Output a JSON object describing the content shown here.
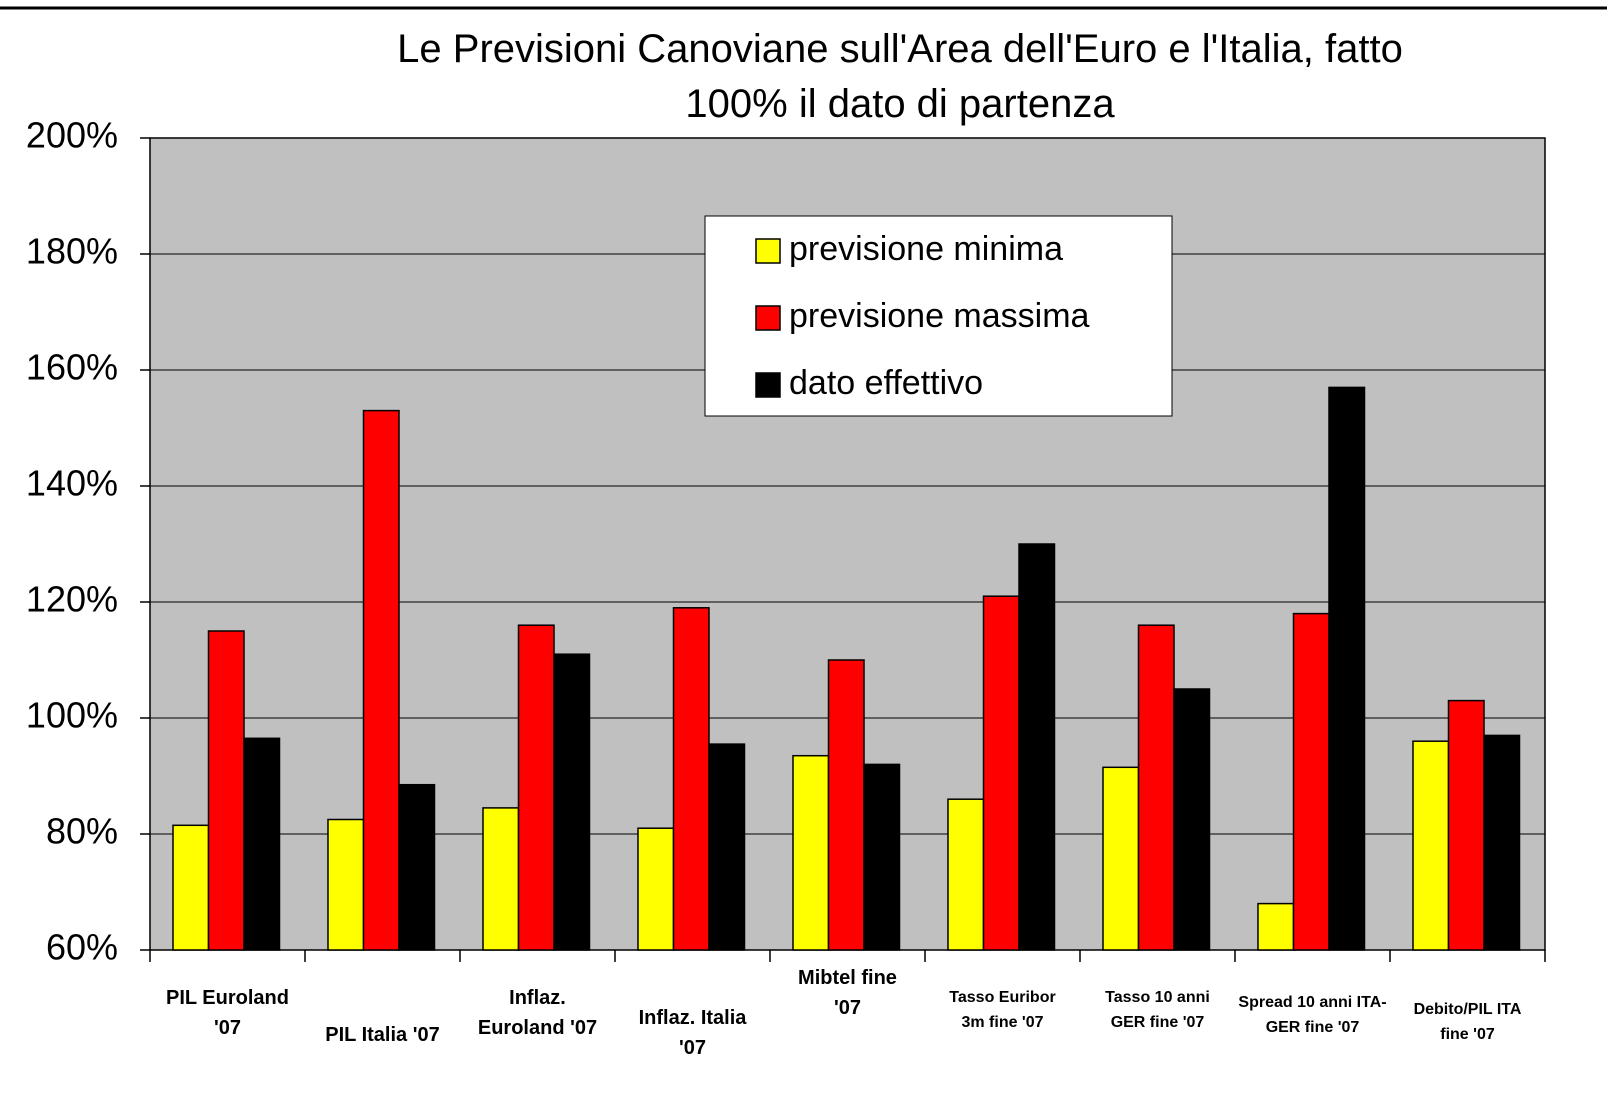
{
  "chart_data": {
    "type": "bar",
    "title": "Le Previsioni Canoviane sull'Area dell'Euro e l'Italia, fatto\n100% il dato di partenza",
    "categories": [
      "PIL Euroland\n'07",
      "PIL Italia '07",
      "Inflaz.\nEuroland '07",
      "Inflaz. Italia\n'07",
      "Mibtel fine\n'07",
      "Tasso Euribor\n3m fine '07",
      "Tasso 10 anni\nGER fine '07",
      "Spread 10 anni ITA-\nGER fine '07",
      "Debito/PIL ITA\nfine '07"
    ],
    "series": [
      {
        "name": "previsione minima",
        "color": "#ffff00",
        "values": [
          81.5,
          82.5,
          84.5,
          81,
          93.5,
          86,
          91.5,
          68,
          96
        ]
      },
      {
        "name": "previsione massima",
        "color": "#ff0000",
        "values": [
          115,
          153,
          116,
          119,
          110,
          121,
          116,
          118,
          103
        ]
      },
      {
        "name": "dato effettivo",
        "color": "#000000",
        "values": [
          96.5,
          88.5,
          111,
          95.5,
          92,
          130,
          105,
          157,
          97
        ]
      }
    ],
    "ylim": [
      60,
      200
    ],
    "yticks": [
      {
        "value": 60,
        "label": "60%"
      },
      {
        "value": 80,
        "label": "80%"
      },
      {
        "value": 100,
        "label": "100%"
      },
      {
        "value": 120,
        "label": "120%"
      },
      {
        "value": 140,
        "label": "140%"
      },
      {
        "value": 160,
        "label": "160%"
      },
      {
        "value": 180,
        "label": "180%"
      },
      {
        "value": 200,
        "label": "200%"
      }
    ],
    "grid": true,
    "legend": "top"
  }
}
